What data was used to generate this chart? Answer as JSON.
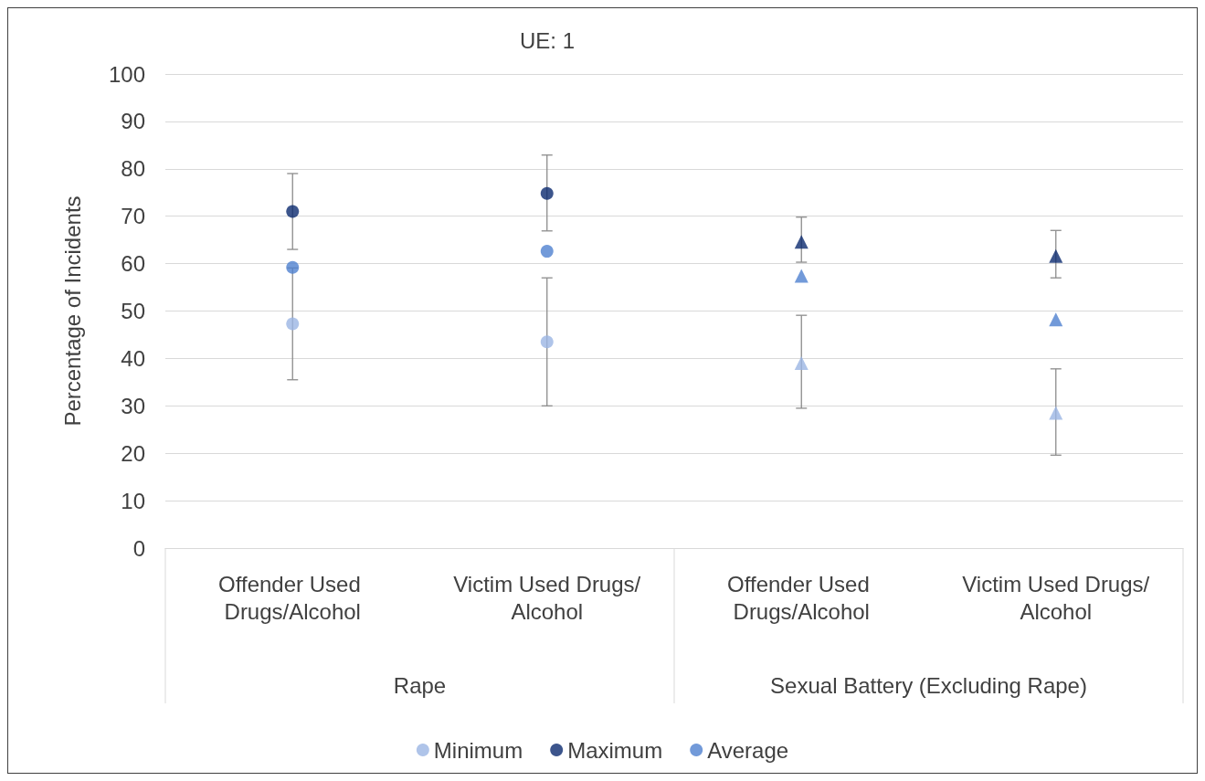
{
  "chart_data": {
    "type": "scatter",
    "title": "UE: 1",
    "ylabel": "Percentage of Incidents",
    "categories": [
      "Offender Used Drugs/Alcohol",
      "Victim Used Drugs/Alcohol",
      "Offender Used Drugs/Alcohol",
      "Victim Used Drugs/Alcohol"
    ],
    "series": [
      {
        "name": "Minimum",
        "color": "#9bb5e3",
        "marker": "circle",
        "values": [
          47.3,
          43.5,
          null,
          null
        ],
        "errors": [
          [
            35.5,
            59.1
          ],
          [
            30,
            57
          ],
          null,
          null
        ]
      },
      {
        "name": "Maximum",
        "color": "#0b2a6f",
        "marker": "circle",
        "values": [
          71,
          74.8,
          null,
          null
        ],
        "errors": [
          [
            63,
            79
          ],
          [
            66.9,
            82.9
          ],
          null,
          null
        ]
      },
      {
        "name": "Average",
        "color": "#4f81d0",
        "marker": "circle",
        "values": [
          59.2,
          62.6,
          null,
          null
        ]
      },
      {
        "color": "#9bb5e3",
        "marker": "triangle",
        "values": [
          null,
          null,
          39,
          28.5
        ],
        "errors": [
          null,
          null,
          [
            29.5,
            49.1
          ],
          [
            19.6,
            37.8
          ]
        ]
      },
      {
        "color": "#0b2a6f",
        "marker": "triangle",
        "values": [
          null,
          null,
          64.6,
          61.6
        ],
        "errors": [
          null,
          null,
          [
            60.3,
            69.8
          ],
          [
            57,
            67
          ]
        ]
      },
      {
        "color": "#4f81d0",
        "marker": "triangle",
        "values": [
          null,
          null,
          57.4,
          48.2
        ]
      }
    ],
    "annotations": [
      "Rape",
      "Sexual Battery (Excluding Rape)"
    ],
    "ylim": [
      0,
      100
    ],
    "yticks": [
      0,
      10,
      20,
      30,
      40,
      50,
      60,
      70,
      80,
      90,
      100
    ],
    "grid": "y",
    "legend": "bottom"
  }
}
